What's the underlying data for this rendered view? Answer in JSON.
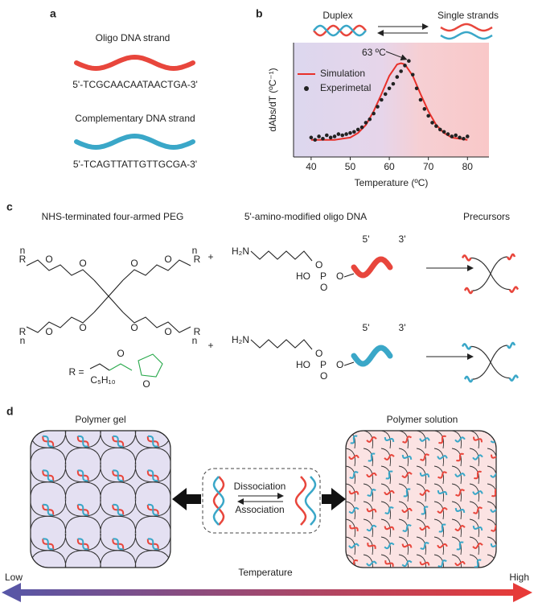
{
  "panels": {
    "a": {
      "label": "a",
      "strand1_title": "Oligo DNA strand",
      "strand1_seq": "5'-TCGCAACAATAACTGA-3'",
      "strand2_title": "Complementary DNA strand",
      "strand2_seq": "5'-TCAGTTATTGTTGCGA-3'"
    },
    "b": {
      "label": "b",
      "duplex": "Duplex",
      "single": "Single strands"
    },
    "c": {
      "label": "c",
      "peg_title": "NHS-terminated four-armed PEG",
      "oligo_title": "5'-amino-modified oligo DNA",
      "precursor_title": "Precursors",
      "plus": "+",
      "r": "R",
      "n": "n",
      "o": "O",
      "r_def": "R =",
      "c5h10": "C₅H₁₀",
      "h2n": "H₂N",
      "p": "P",
      "ho": "HO",
      "five": "5'",
      "three": "3'"
    },
    "d": {
      "label": "d",
      "gel": "Polymer gel",
      "solution": "Polymer solution",
      "dissociation": "Dissociation",
      "association": "Association",
      "temperature": "Temperature",
      "low": "Low",
      "high": "High"
    }
  },
  "chart_data": {
    "type": "line",
    "x_label": "Temperature (ºC)",
    "y_label": "dAbs/dT (ºC⁻¹)",
    "annotation": "63 ºC",
    "xlim": [
      35.5,
      85.5
    ],
    "xticks": [
      40,
      50,
      60,
      70,
      80
    ],
    "ylim": [
      0,
      1
    ],
    "series": [
      {
        "name": "Simulation",
        "kind": "line",
        "color": "#e8302a",
        "x": [
          40,
          42,
          44,
          46,
          48,
          50,
          52,
          54,
          56,
          58,
          60,
          62,
          63,
          64,
          66,
          68,
          70,
          72,
          74,
          76,
          78,
          80
        ],
        "values": [
          0.15,
          0.15,
          0.15,
          0.15,
          0.16,
          0.17,
          0.21,
          0.28,
          0.4,
          0.55,
          0.71,
          0.81,
          0.82,
          0.81,
          0.71,
          0.55,
          0.4,
          0.28,
          0.21,
          0.17,
          0.16,
          0.15
        ]
      },
      {
        "name": "Experimetal",
        "kind": "scatter",
        "color": "#222222",
        "x": [
          40,
          41,
          42,
          43,
          44,
          45,
          46,
          47,
          48,
          49,
          50,
          51,
          52,
          53,
          54,
          55,
          56,
          57,
          58,
          59,
          60,
          61,
          62,
          63,
          64,
          65,
          66,
          67,
          68,
          69,
          70,
          71,
          72,
          73,
          74,
          75,
          76,
          77,
          78,
          79,
          80
        ],
        "values": [
          0.17,
          0.15,
          0.18,
          0.16,
          0.19,
          0.17,
          0.18,
          0.2,
          0.19,
          0.2,
          0.21,
          0.22,
          0.24,
          0.26,
          0.3,
          0.33,
          0.38,
          0.44,
          0.5,
          0.55,
          0.6,
          0.64,
          0.7,
          0.75,
          0.8,
          0.84,
          0.72,
          0.6,
          0.5,
          0.42,
          0.36,
          0.3,
          0.27,
          0.24,
          0.22,
          0.2,
          0.18,
          0.19,
          0.17,
          0.16,
          0.18
        ]
      }
    ]
  }
}
